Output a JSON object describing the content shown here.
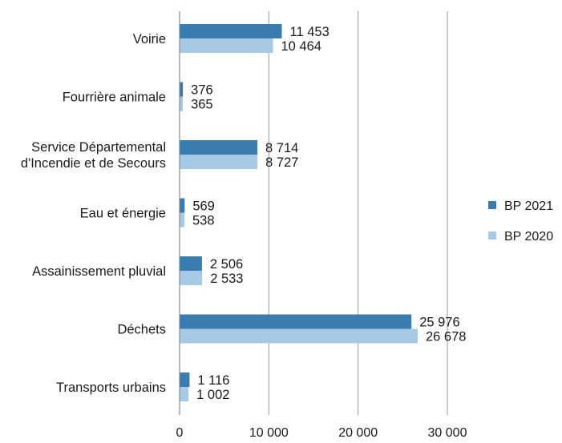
{
  "chart_data": {
    "type": "bar",
    "orientation": "horizontal",
    "categories": [
      "Voirie",
      "Fourrière animale",
      "Service Départemental d'Incendie et de Secours",
      "Eau et énergie",
      "Assainissement pluvial",
      "Déchets",
      "Transports urbains"
    ],
    "category_lines": [
      [
        "Voirie"
      ],
      [
        "Fourrière animale"
      ],
      [
        "Service Départemental",
        "d'Incendie et de Secours"
      ],
      [
        "Eau et énergie"
      ],
      [
        "Assainissement pluvial"
      ],
      [
        "Déchets"
      ],
      [
        "Transports urbains"
      ]
    ],
    "series": [
      {
        "name": "BP 2021",
        "color": "#3a7cb0",
        "values": [
          11453,
          376,
          8714,
          569,
          2506,
          25976,
          1116
        ],
        "value_labels": [
          "11 453",
          "376",
          "8 714",
          "569",
          "2 506",
          "25 976",
          "1 116"
        ]
      },
      {
        "name": "BP 2020",
        "color": "#a6cae5",
        "values": [
          10464,
          365,
          8727,
          538,
          2533,
          26678,
          1002
        ],
        "value_labels": [
          "10 464",
          "365",
          "8 727",
          "538",
          "2 533",
          "26 678",
          "1 002"
        ]
      }
    ],
    "x_ticks": [
      0,
      10000,
      20000,
      30000
    ],
    "x_tick_labels": [
      "0",
      "10 000",
      "20 000",
      "30 000"
    ],
    "xlim": [
      0,
      30000
    ],
    "grid": true,
    "legend_position": "right"
  }
}
